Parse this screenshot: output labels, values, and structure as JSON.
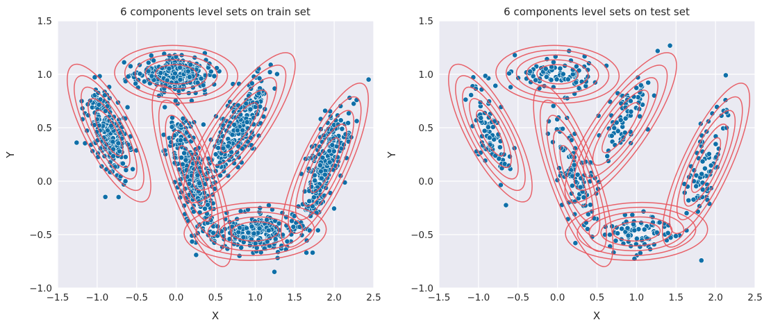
{
  "chart_data": [
    {
      "type": "scatter",
      "title": "6 components level sets on train set",
      "xlabel": "X",
      "ylabel": "Y",
      "xlim": [
        -1.5,
        2.5
      ],
      "ylim": [
        -1.0,
        1.5
      ],
      "xticks": [
        "−1.5",
        "−1.0",
        "−0.5",
        "0.0",
        "0.5",
        "1.0",
        "1.5",
        "2.0",
        "2.5"
      ],
      "yticks": [
        "1.5",
        "1.0",
        "0.5",
        "0.0",
        "−0.5",
        "−1.0"
      ],
      "xtick_values": [
        -1.5,
        -1.0,
        -0.5,
        0.0,
        0.5,
        1.0,
        1.5,
        2.0,
        2.5
      ],
      "ytick_values": [
        1.5,
        1.0,
        0.5,
        0.0,
        -0.5,
        -1.0
      ],
      "grid": true,
      "point_color": "#0f6fa8",
      "contour_color": "#e8525a",
      "background": "#eaeaf2",
      "n_points": 1500,
      "components": [
        {
          "mean": [
            0.0,
            1.0
          ],
          "sd": [
            0.26,
            0.09
          ],
          "angle_deg": -2
        },
        {
          "mean": [
            -0.85,
            0.45
          ],
          "sd": [
            0.1,
            0.24
          ],
          "angle_deg": 28
        },
        {
          "mean": [
            0.8,
            0.5
          ],
          "sd": [
            0.11,
            0.28
          ],
          "angle_deg": -35
        },
        {
          "mean": [
            0.2,
            0.05
          ],
          "sd": [
            0.1,
            0.3
          ],
          "angle_deg": 20
        },
        {
          "mean": [
            1.0,
            -0.47
          ],
          "sd": [
            0.3,
            0.09
          ],
          "angle_deg": 2
        },
        {
          "mean": [
            1.88,
            0.15
          ],
          "sd": [
            0.1,
            0.28
          ],
          "angle_deg": -25
        }
      ]
    },
    {
      "type": "scatter",
      "title": "6 components level sets on test set",
      "xlabel": "X",
      "ylabel": "Y",
      "xlim": [
        -1.5,
        2.5
      ],
      "ylim": [
        -1.0,
        1.5
      ],
      "xticks": [
        "−1.5",
        "−1.0",
        "−0.5",
        "0.0",
        "0.5",
        "1.0",
        "1.5",
        "2.0",
        "2.5"
      ],
      "yticks": [
        "1.5",
        "1.0",
        "0.5",
        "0.0",
        "−0.5",
        "−1.0"
      ],
      "xtick_values": [
        -1.5,
        -1.0,
        -0.5,
        0.0,
        0.5,
        1.0,
        1.5,
        2.0,
        2.5
      ],
      "ytick_values": [
        1.5,
        1.0,
        0.5,
        0.0,
        -0.5,
        -1.0
      ],
      "grid": true,
      "point_color": "#0f6fa8",
      "contour_color": "#e8525a",
      "background": "#eaeaf2",
      "n_points": 500,
      "components": [
        {
          "mean": [
            0.0,
            1.0
          ],
          "sd": [
            0.26,
            0.09
          ],
          "angle_deg": -2
        },
        {
          "mean": [
            -0.85,
            0.45
          ],
          "sd": [
            0.1,
            0.24
          ],
          "angle_deg": 28
        },
        {
          "mean": [
            0.8,
            0.5
          ],
          "sd": [
            0.11,
            0.28
          ],
          "angle_deg": -35
        },
        {
          "mean": [
            0.2,
            0.05
          ],
          "sd": [
            0.1,
            0.3
          ],
          "angle_deg": 20
        },
        {
          "mean": [
            1.0,
            -0.47
          ],
          "sd": [
            0.3,
            0.09
          ],
          "angle_deg": 2
        },
        {
          "mean": [
            1.88,
            0.15
          ],
          "sd": [
            0.1,
            0.28
          ],
          "angle_deg": -25
        }
      ]
    }
  ]
}
